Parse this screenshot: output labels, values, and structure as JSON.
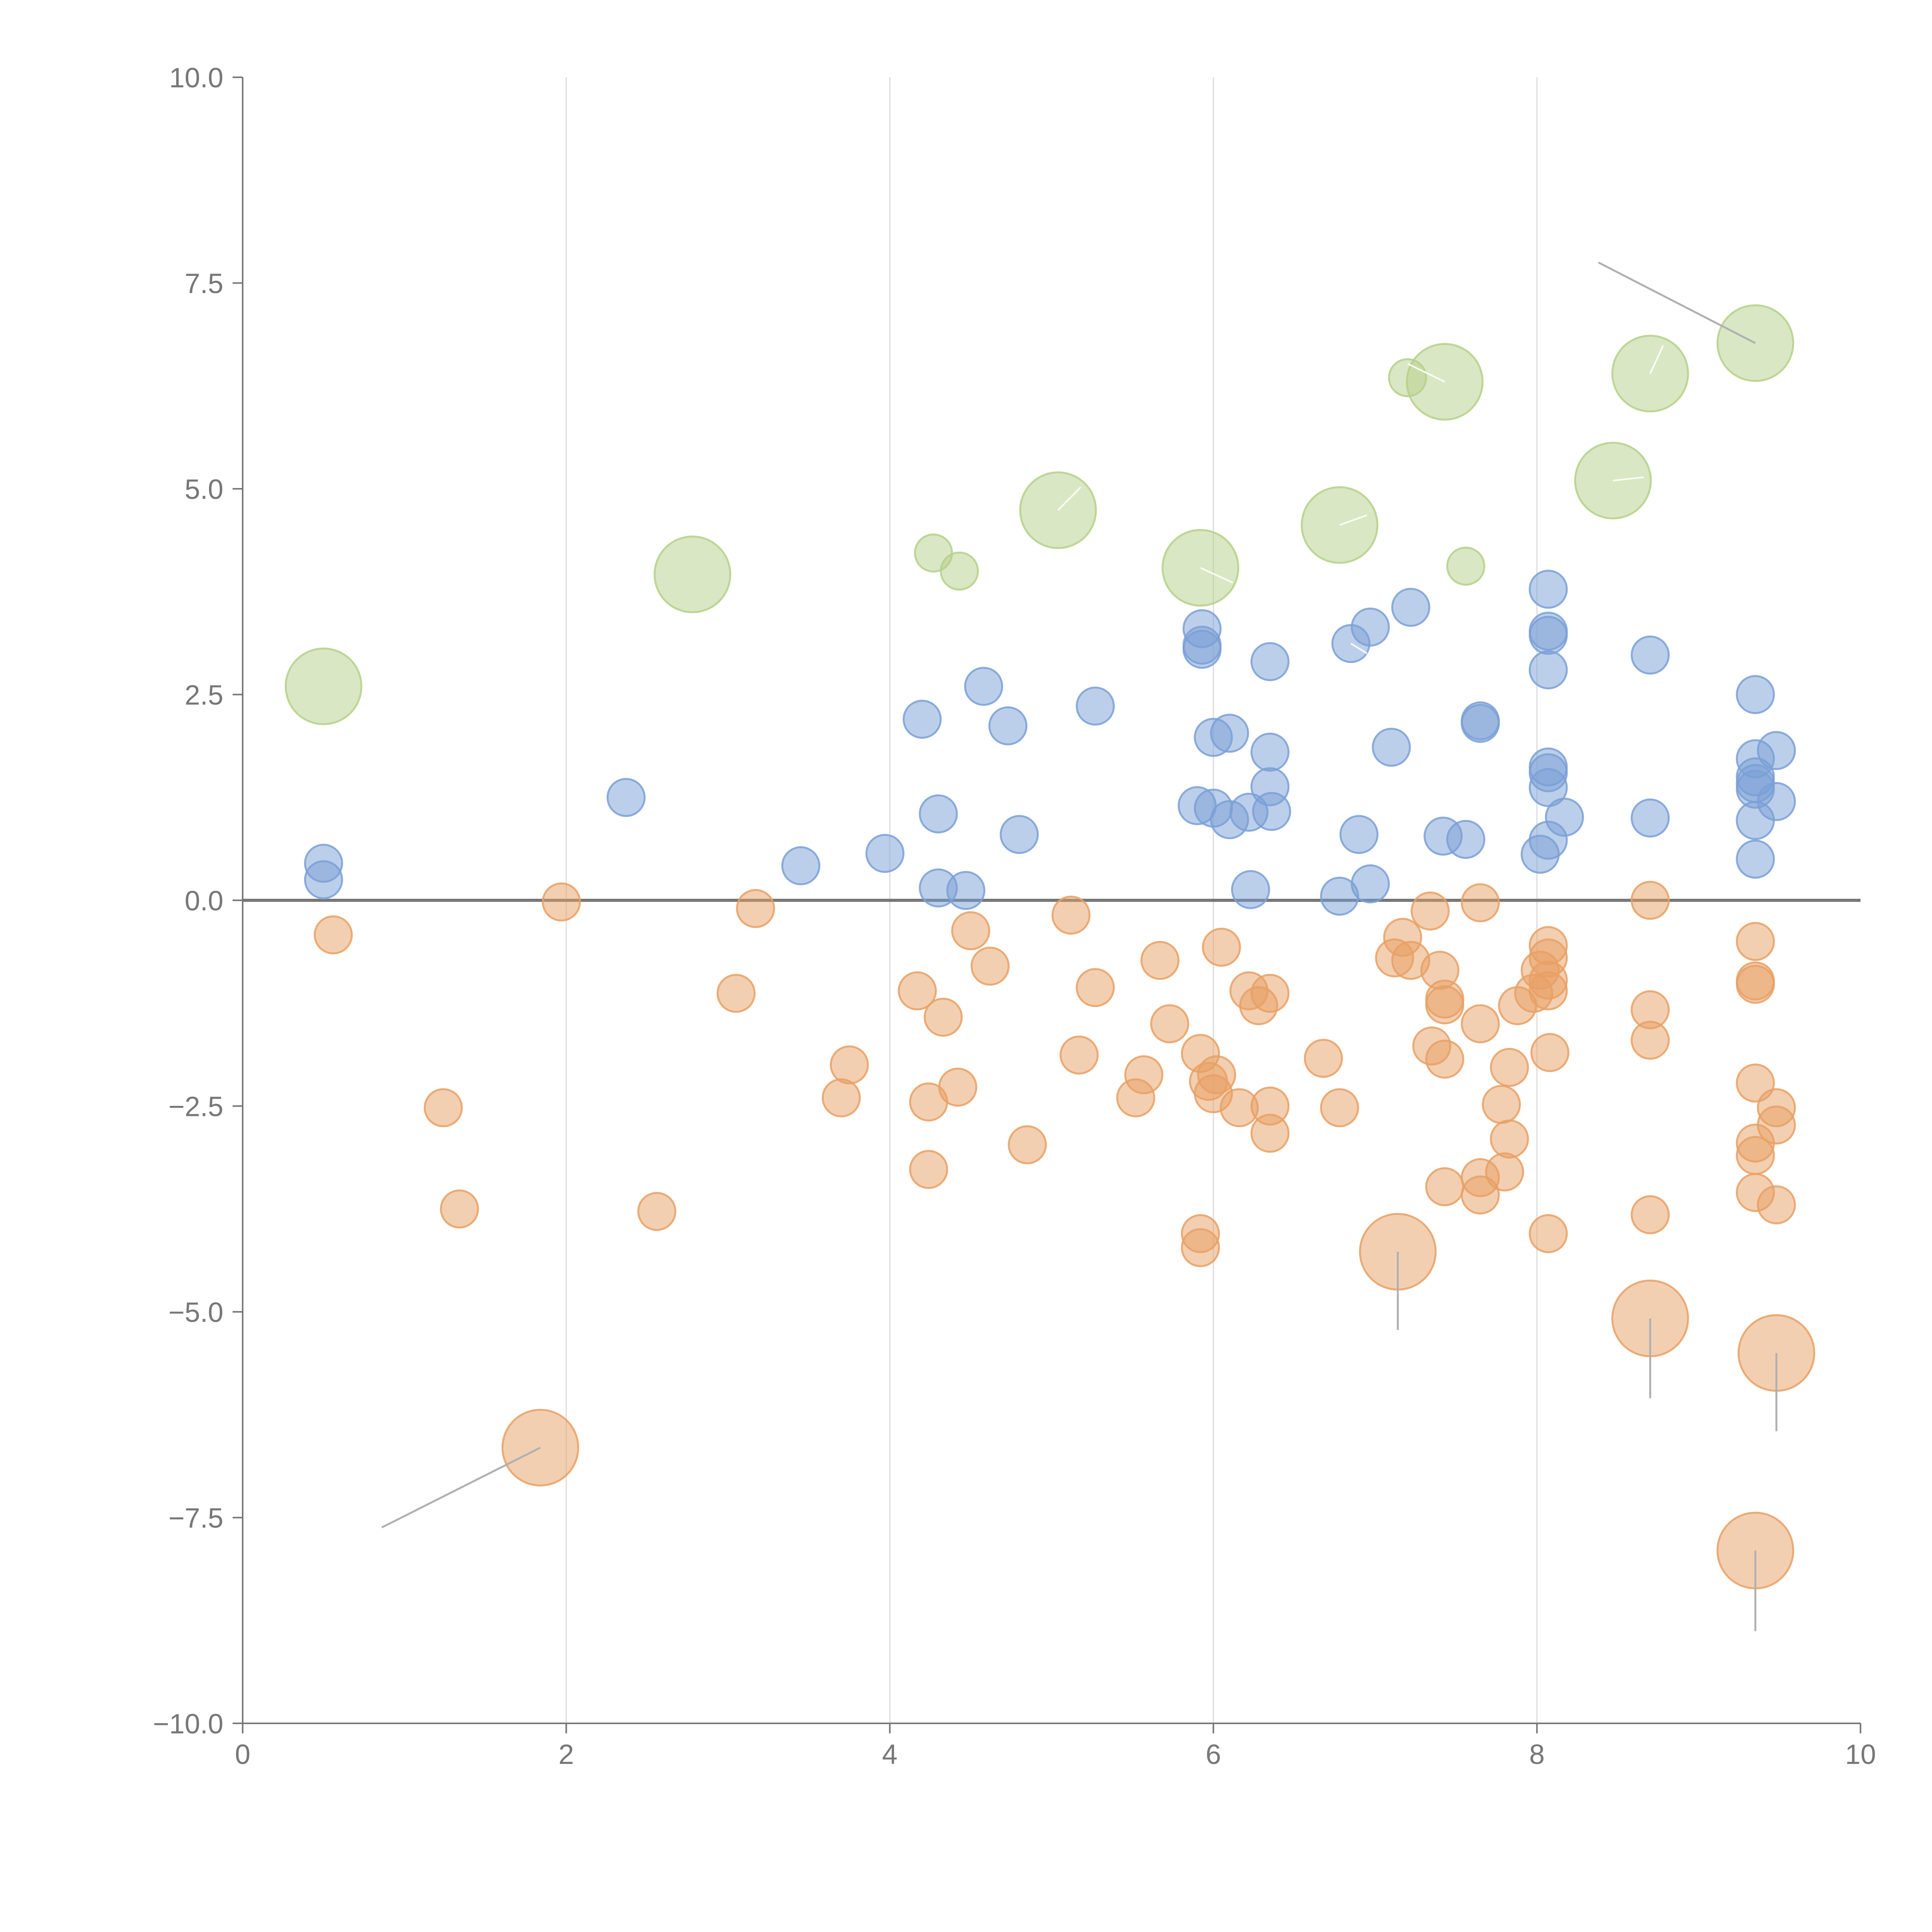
{
  "chart_data": {
    "type": "scatter",
    "title": "",
    "xlabel": "",
    "ylabel": "",
    "xlim": [
      0,
      10
    ],
    "ylim": [
      -10,
      10
    ],
    "x_ticks": [
      0,
      2,
      4,
      6,
      8,
      10
    ],
    "y_ticks": [
      -10,
      -7.5,
      -5,
      -2.5,
      0,
      2.5,
      5,
      7.5,
      10
    ],
    "x_tick_labels": [
      "0",
      "2",
      "4",
      "6",
      "8",
      "10"
    ],
    "y_tick_labels": [
      "−10.0",
      "−7.5",
      "−5.0",
      "−2.5",
      "0.0",
      "2.5",
      "5.0",
      "7.5",
      "10.0"
    ],
    "grid": "vertical",
    "reference_line_y": 0,
    "colors": {
      "negative": "#e8a064",
      "neutral": "#7aa0d6",
      "positive": "#b5d08a",
      "axis": "#777777",
      "grid": "#dcdcdc"
    },
    "series": [
      {
        "name": "positive",
        "color": "#b5d08a",
        "points": [
          {
            "x": 0.5,
            "y": 2.6,
            "s": 3
          },
          {
            "x": 2.78,
            "y": 3.96,
            "s": 3
          },
          {
            "x": 4.27,
            "y": 4.22,
            "s": 1
          },
          {
            "x": 4.43,
            "y": 4.0,
            "s": 1
          },
          {
            "x": 5.04,
            "y": 4.74,
            "s": 3
          },
          {
            "x": 5.92,
            "y": 4.04,
            "s": 3
          },
          {
            "x": 6.78,
            "y": 4.56,
            "s": 3
          },
          {
            "x": 7.2,
            "y": 6.35,
            "s": 1
          },
          {
            "x": 7.43,
            "y": 6.3,
            "s": 3
          },
          {
            "x": 7.56,
            "y": 4.06,
            "s": 1
          },
          {
            "x": 8.47,
            "y": 5.1,
            "s": 3
          },
          {
            "x": 8.7,
            "y": 6.4,
            "s": 3
          },
          {
            "x": 9.35,
            "y": 6.77,
            "s": 3
          }
        ]
      },
      {
        "name": "neutral",
        "color": "#7aa0d6",
        "points": [
          {
            "x": 0.5,
            "y": 0.45,
            "s": 1
          },
          {
            "x": 0.5,
            "y": 0.25,
            "s": 1
          },
          {
            "x": 2.37,
            "y": 1.25,
            "s": 1
          },
          {
            "x": 3.45,
            "y": 0.42,
            "s": 1
          },
          {
            "x": 3.97,
            "y": 0.57,
            "s": 1
          },
          {
            "x": 4.2,
            "y": 2.2,
            "s": 1
          },
          {
            "x": 4.3,
            "y": 1.05,
            "s": 1
          },
          {
            "x": 4.3,
            "y": 0.15,
            "s": 1
          },
          {
            "x": 4.47,
            "y": 0.12,
            "s": 1
          },
          {
            "x": 4.58,
            "y": 2.6,
            "s": 1
          },
          {
            "x": 4.73,
            "y": 2.12,
            "s": 1
          },
          {
            "x": 4.8,
            "y": 0.8,
            "s": 1
          },
          {
            "x": 5.27,
            "y": 2.36,
            "s": 1
          },
          {
            "x": 5.93,
            "y": 3.3,
            "s": 1
          },
          {
            "x": 5.93,
            "y": 3.1,
            "s": 1
          },
          {
            "x": 5.93,
            "y": 3.05,
            "s": 1
          },
          {
            "x": 5.9,
            "y": 1.15,
            "s": 1
          },
          {
            "x": 6.0,
            "y": 1.98,
            "s": 1
          },
          {
            "x": 6.1,
            "y": 2.03,
            "s": 1
          },
          {
            "x": 6.0,
            "y": 1.12,
            "s": 1
          },
          {
            "x": 6.1,
            "y": 0.98,
            "s": 1
          },
          {
            "x": 6.22,
            "y": 1.07,
            "s": 1
          },
          {
            "x": 6.23,
            "y": 0.13,
            "s": 1
          },
          {
            "x": 6.35,
            "y": 2.9,
            "s": 1
          },
          {
            "x": 6.35,
            "y": 1.8,
            "s": 1
          },
          {
            "x": 6.35,
            "y": 1.38,
            "s": 1
          },
          {
            "x": 6.36,
            "y": 1.08,
            "s": 1
          },
          {
            "x": 6.78,
            "y": 0.05,
            "s": 1
          },
          {
            "x": 6.85,
            "y": 3.12,
            "s": 1
          },
          {
            "x": 6.9,
            "y": 0.8,
            "s": 1
          },
          {
            "x": 6.97,
            "y": 3.32,
            "s": 1
          },
          {
            "x": 6.97,
            "y": 0.2,
            "s": 1
          },
          {
            "x": 7.1,
            "y": 1.86,
            "s": 1
          },
          {
            "x": 7.22,
            "y": 3.56,
            "s": 1
          },
          {
            "x": 7.42,
            "y": 0.78,
            "s": 1
          },
          {
            "x": 7.56,
            "y": 0.74,
            "s": 1
          },
          {
            "x": 7.65,
            "y": 2.18,
            "s": 1
          },
          {
            "x": 7.65,
            "y": 2.15,
            "s": 1
          },
          {
            "x": 8.02,
            "y": 0.56,
            "s": 1
          },
          {
            "x": 8.07,
            "y": 3.78,
            "s": 1
          },
          {
            "x": 8.07,
            "y": 3.27,
            "s": 1
          },
          {
            "x": 8.07,
            "y": 3.22,
            "s": 1
          },
          {
            "x": 8.07,
            "y": 2.8,
            "s": 1
          },
          {
            "x": 8.07,
            "y": 1.62,
            "s": 1
          },
          {
            "x": 8.07,
            "y": 1.55,
            "s": 1
          },
          {
            "x": 8.07,
            "y": 1.37,
            "s": 1
          },
          {
            "x": 8.07,
            "y": 0.73,
            "s": 1
          },
          {
            "x": 8.17,
            "y": 1.01,
            "s": 1
          },
          {
            "x": 8.7,
            "y": 2.98,
            "s": 1
          },
          {
            "x": 8.7,
            "y": 1.0,
            "s": 1
          },
          {
            "x": 9.35,
            "y": 2.5,
            "s": 1
          },
          {
            "x": 9.35,
            "y": 1.72,
            "s": 1
          },
          {
            "x": 9.35,
            "y": 1.5,
            "s": 1
          },
          {
            "x": 9.35,
            "y": 1.42,
            "s": 1
          },
          {
            "x": 9.35,
            "y": 1.35,
            "s": 1
          },
          {
            "x": 9.35,
            "y": 0.97,
            "s": 1
          },
          {
            "x": 9.35,
            "y": 0.5,
            "s": 1
          },
          {
            "x": 9.48,
            "y": 1.82,
            "s": 1
          },
          {
            "x": 9.48,
            "y": 1.2,
            "s": 1
          }
        ]
      },
      {
        "name": "negative",
        "color": "#e8a064",
        "points": [
          {
            "x": 0.56,
            "y": -0.42,
            "s": 1
          },
          {
            "x": 1.24,
            "y": -2.52,
            "s": 1
          },
          {
            "x": 1.34,
            "y": -3.75,
            "s": 1
          },
          {
            "x": 1.84,
            "y": -6.65,
            "s": 3
          },
          {
            "x": 1.97,
            "y": -0.02,
            "s": 1
          },
          {
            "x": 2.56,
            "y": -3.78,
            "s": 1
          },
          {
            "x": 3.05,
            "y": -1.13,
            "s": 1
          },
          {
            "x": 3.17,
            "y": -0.1,
            "s": 1
          },
          {
            "x": 3.7,
            "y": -2.4,
            "s": 1
          },
          {
            "x": 3.75,
            "y": -2.0,
            "s": 1
          },
          {
            "x": 4.17,
            "y": -1.1,
            "s": 1
          },
          {
            "x": 4.24,
            "y": -2.45,
            "s": 1
          },
          {
            "x": 4.24,
            "y": -3.27,
            "s": 1
          },
          {
            "x": 4.33,
            "y": -1.42,
            "s": 1
          },
          {
            "x": 4.42,
            "y": -2.27,
            "s": 1
          },
          {
            "x": 4.5,
            "y": -0.37,
            "s": 1
          },
          {
            "x": 4.62,
            "y": -0.8,
            "s": 1
          },
          {
            "x": 4.85,
            "y": -2.97,
            "s": 1
          },
          {
            "x": 5.12,
            "y": -0.18,
            "s": 1
          },
          {
            "x": 5.17,
            "y": -1.88,
            "s": 1
          },
          {
            "x": 5.27,
            "y": -1.06,
            "s": 1
          },
          {
            "x": 5.52,
            "y": -2.4,
            "s": 1
          },
          {
            "x": 5.57,
            "y": -2.12,
            "s": 1
          },
          {
            "x": 5.67,
            "y": -0.73,
            "s": 1
          },
          {
            "x": 5.73,
            "y": -1.5,
            "s": 1
          },
          {
            "x": 5.92,
            "y": -1.86,
            "s": 1
          },
          {
            "x": 5.92,
            "y": -4.05,
            "s": 1
          },
          {
            "x": 5.92,
            "y": -4.22,
            "s": 1
          },
          {
            "x": 5.97,
            "y": -2.2,
            "s": 1
          },
          {
            "x": 6.0,
            "y": -2.35,
            "s": 1
          },
          {
            "x": 6.02,
            "y": -2.12,
            "s": 1
          },
          {
            "x": 6.05,
            "y": -0.57,
            "s": 1
          },
          {
            "x": 6.16,
            "y": -2.52,
            "s": 1
          },
          {
            "x": 6.22,
            "y": -1.1,
            "s": 1
          },
          {
            "x": 6.28,
            "y": -1.28,
            "s": 1
          },
          {
            "x": 6.35,
            "y": -1.13,
            "s": 1
          },
          {
            "x": 6.35,
            "y": -2.5,
            "s": 1
          },
          {
            "x": 6.35,
            "y": -2.83,
            "s": 1
          },
          {
            "x": 6.68,
            "y": -1.92,
            "s": 1
          },
          {
            "x": 6.78,
            "y": -2.52,
            "s": 1
          },
          {
            "x": 7.14,
            "y": -4.27,
            "s": 3
          },
          {
            "x": 7.12,
            "y": -0.7,
            "s": 1
          },
          {
            "x": 7.17,
            "y": -0.45,
            "s": 1
          },
          {
            "x": 7.22,
            "y": -0.73,
            "s": 1
          },
          {
            "x": 7.34,
            "y": -0.13,
            "s": 1
          },
          {
            "x": 7.35,
            "y": -1.77,
            "s": 1
          },
          {
            "x": 7.4,
            "y": -0.85,
            "s": 1
          },
          {
            "x": 7.43,
            "y": -1.2,
            "s": 1
          },
          {
            "x": 7.43,
            "y": -1.27,
            "s": 1
          },
          {
            "x": 7.43,
            "y": -1.93,
            "s": 1
          },
          {
            "x": 7.43,
            "y": -3.48,
            "s": 1
          },
          {
            "x": 7.65,
            "y": -0.03,
            "s": 1
          },
          {
            "x": 7.65,
            "y": -1.5,
            "s": 1
          },
          {
            "x": 7.65,
            "y": -3.37,
            "s": 1
          },
          {
            "x": 7.65,
            "y": -3.58,
            "s": 1
          },
          {
            "x": 7.78,
            "y": -2.48,
            "s": 1
          },
          {
            "x": 7.8,
            "y": -3.3,
            "s": 1
          },
          {
            "x": 7.83,
            "y": -2.03,
            "s": 1
          },
          {
            "x": 7.83,
            "y": -2.9,
            "s": 1
          },
          {
            "x": 7.88,
            "y": -1.28,
            "s": 1
          },
          {
            "x": 7.98,
            "y": -1.13,
            "s": 1
          },
          {
            "x": 8.02,
            "y": -0.85,
            "s": 1
          },
          {
            "x": 8.07,
            "y": -0.55,
            "s": 1
          },
          {
            "x": 8.07,
            "y": -0.7,
            "s": 1
          },
          {
            "x": 8.07,
            "y": -0.97,
            "s": 1
          },
          {
            "x": 8.07,
            "y": -1.1,
            "s": 1
          },
          {
            "x": 8.08,
            "y": -1.85,
            "s": 1
          },
          {
            "x": 8.07,
            "y": -4.05,
            "s": 1
          },
          {
            "x": 8.7,
            "y": 0.0,
            "s": 1
          },
          {
            "x": 8.7,
            "y": -1.33,
            "s": 1
          },
          {
            "x": 8.7,
            "y": -1.7,
            "s": 1
          },
          {
            "x": 8.7,
            "y": -3.82,
            "s": 1
          },
          {
            "x": 8.7,
            "y": -5.08,
            "s": 3
          },
          {
            "x": 9.35,
            "y": -0.5,
            "s": 1
          },
          {
            "x": 9.35,
            "y": -0.98,
            "s": 1
          },
          {
            "x": 9.35,
            "y": -1.02,
            "s": 1
          },
          {
            "x": 9.35,
            "y": -2.22,
            "s": 1
          },
          {
            "x": 9.35,
            "y": -2.95,
            "s": 1
          },
          {
            "x": 9.35,
            "y": -3.1,
            "s": 1
          },
          {
            "x": 9.35,
            "y": -3.55,
            "s": 1
          },
          {
            "x": 9.35,
            "y": -7.9,
            "s": 3
          },
          {
            "x": 9.48,
            "y": -2.52,
            "s": 1
          },
          {
            "x": 9.48,
            "y": -2.73,
            "s": 1
          },
          {
            "x": 9.48,
            "y": -3.7,
            "s": 1
          },
          {
            "x": 9.48,
            "y": -5.5,
            "s": 3
          }
        ]
      }
    ],
    "annotations": [
      {
        "x1": 1.84,
        "y1": -6.65,
        "x2": 0.86,
        "y2": -7.62,
        "style": "gray"
      },
      {
        "x1": 7.14,
        "y1": -4.27,
        "x2": 7.14,
        "y2": -5.22,
        "style": "gray"
      },
      {
        "x1": 8.7,
        "y1": -5.08,
        "x2": 8.7,
        "y2": -6.05,
        "style": "gray"
      },
      {
        "x1": 9.48,
        "y1": -5.5,
        "x2": 9.48,
        "y2": -6.45,
        "style": "gray"
      },
      {
        "x1": 9.35,
        "y1": -7.9,
        "x2": 9.35,
        "y2": -8.88,
        "style": "gray"
      },
      {
        "x1": 9.35,
        "y1": 6.77,
        "x2": 8.38,
        "y2": 7.75,
        "style": "gray"
      },
      {
        "x1": 5.04,
        "y1": 4.74,
        "x2": 5.18,
        "y2": 5.02,
        "style": "light"
      },
      {
        "x1": 5.92,
        "y1": 4.04,
        "x2": 6.12,
        "y2": 3.86,
        "style": "light"
      },
      {
        "x1": 6.78,
        "y1": 4.56,
        "x2": 6.95,
        "y2": 4.68,
        "style": "light"
      },
      {
        "x1": 7.43,
        "y1": 6.3,
        "x2": 7.2,
        "y2": 6.52,
        "style": "light"
      },
      {
        "x1": 8.47,
        "y1": 5.1,
        "x2": 8.66,
        "y2": 5.14,
        "style": "light"
      },
      {
        "x1": 8.7,
        "y1": 6.4,
        "x2": 8.78,
        "y2": 6.74,
        "style": "light"
      },
      {
        "x1": 6.85,
        "y1": 3.12,
        "x2": 6.95,
        "y2": 3.0,
        "style": "light"
      }
    ]
  }
}
